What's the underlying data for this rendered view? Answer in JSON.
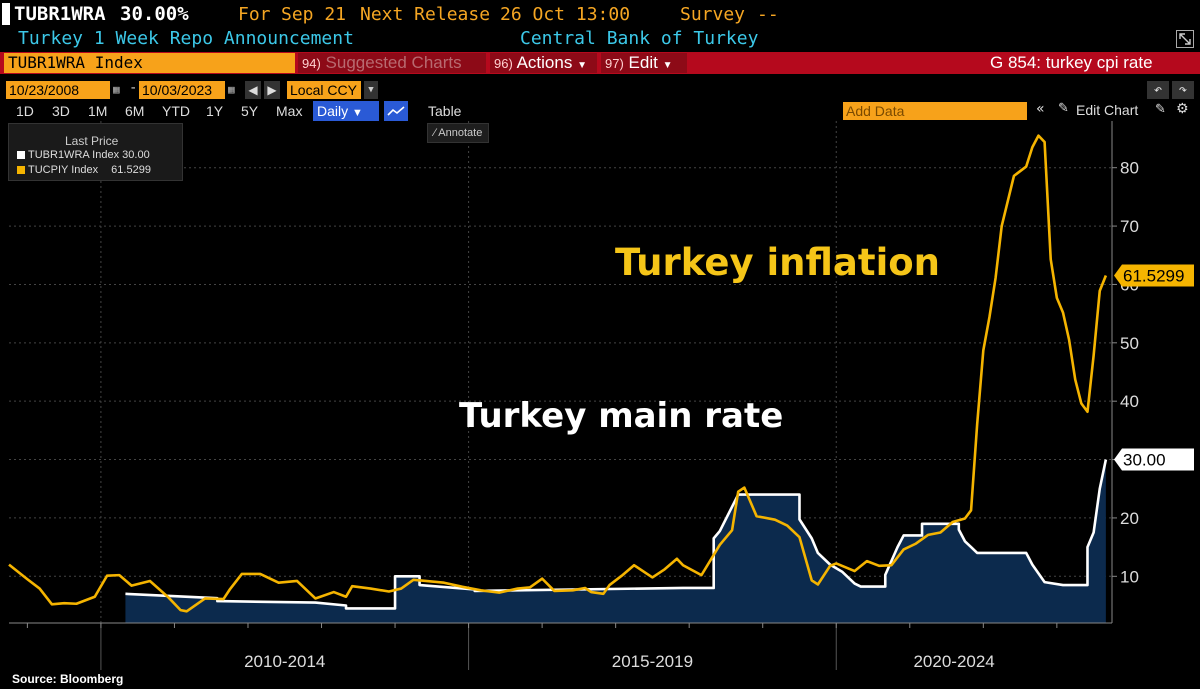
{
  "header": {
    "ticker": "TUBR1WRA",
    "value": "30.00%",
    "for_label": "For",
    "for_date": "Sep 21",
    "next_release_label": "Next Release",
    "next_release": "26 Oct 13:00",
    "survey_label": "Survey",
    "survey_value": "--",
    "description": "Turkey 1 Week Repo Announcement",
    "source_org": "Central Bank of Turkey"
  },
  "toolbar": {
    "security": "TUBR1WRA Index",
    "suggested_num": "94)",
    "suggested_label": "Suggested Charts",
    "actions_num": "96)",
    "actions_label": "Actions",
    "edit_num": "97)",
    "edit_label": "Edit",
    "search_label": "G 854: turkey cpi rate",
    "start_date": "10/23/2008",
    "end_date": "10/03/2023",
    "currency": "Local CCY",
    "ranges": [
      "1D",
      "3D",
      "1M",
      "6M",
      "YTD",
      "1Y",
      "5Y",
      "Max"
    ],
    "frequency": "Daily",
    "table_label": "Table",
    "add_data_placeholder": "Add Data",
    "edit_chart_label": "Edit Chart",
    "annotate_label": "Annotate"
  },
  "legend": {
    "title": "Last Price",
    "items": [
      {
        "label": "TUBR1WRA Index",
        "value": "30.00",
        "color": "#ffffff"
      },
      {
        "label": "TUCPIY Index",
        "value": "61.5299",
        "color": "#f5b400"
      }
    ]
  },
  "annotations": {
    "inflation": "Turkey inflation",
    "rate": "Turkey main rate"
  },
  "source": "Source: Bloomberg",
  "chart_data": {
    "type": "line",
    "x_range": [
      "2008-10",
      "2023-10"
    ],
    "ylim": [
      2,
      88
    ],
    "yticks": [
      10,
      20,
      30,
      40,
      50,
      60,
      70,
      80
    ],
    "x_period_labels": [
      "2010-2014",
      "2015-2019",
      "2020-2024"
    ],
    "last_values": {
      "rate": "30.00",
      "inflation": "61.5299"
    },
    "series": [
      {
        "name": "TUBR1WRA Index",
        "color": "#ffffff",
        "fill": "#0c2a4d",
        "points": [
          [
            "2010-05",
            7
          ],
          [
            "2011-08",
            6.25
          ],
          [
            "2011-08",
            5.75
          ],
          [
            "2012-12",
            5.5
          ],
          [
            "2013-05",
            5
          ],
          [
            "2013-05",
            4.5
          ],
          [
            "2014-01",
            4.5
          ],
          [
            "2014-01",
            10
          ],
          [
            "2014-05",
            10
          ],
          [
            "2014-05",
            8.5
          ],
          [
            "2015-02",
            7.75
          ],
          [
            "2015-02",
            7.5
          ],
          [
            "2017-12",
            8
          ],
          [
            "2018-05",
            8
          ],
          [
            "2018-05",
            16.5
          ],
          [
            "2018-06",
            17.75
          ],
          [
            "2018-09",
            24
          ],
          [
            "2019-07",
            24
          ],
          [
            "2019-07",
            19.75
          ],
          [
            "2019-09",
            16.5
          ],
          [
            "2019-10",
            14
          ],
          [
            "2019-12",
            12
          ],
          [
            "2020-02",
            10.75
          ],
          [
            "2020-04",
            8.75
          ],
          [
            "2020-05",
            8.25
          ],
          [
            "2020-09",
            8.25
          ],
          [
            "2020-09",
            10.25
          ],
          [
            "2020-11",
            15
          ],
          [
            "2020-12",
            17
          ],
          [
            "2021-03",
            17
          ],
          [
            "2021-03",
            19
          ],
          [
            "2021-09",
            19
          ],
          [
            "2021-09",
            18
          ],
          [
            "2021-10",
            16
          ],
          [
            "2021-11",
            15
          ],
          [
            "2021-12",
            14
          ],
          [
            "2022-08",
            14
          ],
          [
            "2022-09",
            12
          ],
          [
            "2022-10",
            10.5
          ],
          [
            "2022-11",
            9
          ],
          [
            "2023-02",
            8.5
          ],
          [
            "2023-06",
            8.5
          ],
          [
            "2023-06",
            15
          ],
          [
            "2023-07",
            17.5
          ],
          [
            "2023-08",
            25
          ],
          [
            "2023-09",
            30
          ]
        ]
      },
      {
        "name": "TUCPIY Index",
        "color": "#f5b400",
        "points": [
          [
            "2008-10",
            12
          ],
          [
            "2009-01",
            9.5
          ],
          [
            "2009-03",
            7.9
          ],
          [
            "2009-05",
            5.2
          ],
          [
            "2009-07",
            5.4
          ],
          [
            "2009-09",
            5.3
          ],
          [
            "2009-12",
            6.5
          ],
          [
            "2010-02",
            10.1
          ],
          [
            "2010-04",
            10.2
          ],
          [
            "2010-06",
            8.4
          ],
          [
            "2010-09",
            9.2
          ],
          [
            "2010-12",
            6.4
          ],
          [
            "2011-02",
            4.2
          ],
          [
            "2011-03",
            4
          ],
          [
            "2011-06",
            6.2
          ],
          [
            "2011-09",
            6.1
          ],
          [
            "2011-10",
            7.7
          ],
          [
            "2011-12",
            10.4
          ],
          [
            "2012-03",
            10.4
          ],
          [
            "2012-06",
            8.9
          ],
          [
            "2012-09",
            9.2
          ],
          [
            "2012-12",
            6.2
          ],
          [
            "2013-03",
            7.3
          ],
          [
            "2013-05",
            6.5
          ],
          [
            "2013-06",
            8.3
          ],
          [
            "2013-09",
            7.9
          ],
          [
            "2013-12",
            7.4
          ],
          [
            "2014-02",
            7.9
          ],
          [
            "2014-04",
            9.4
          ],
          [
            "2014-06",
            9.2
          ],
          [
            "2014-09",
            8.9
          ],
          [
            "2014-12",
            8.2
          ],
          [
            "2015-03",
            7.6
          ],
          [
            "2015-06",
            7.2
          ],
          [
            "2015-09",
            7.9
          ],
          [
            "2015-11",
            8.1
          ],
          [
            "2016-01",
            9.6
          ],
          [
            "2016-03",
            7.5
          ],
          [
            "2016-06",
            7.6
          ],
          [
            "2016-08",
            8
          ],
          [
            "2016-09",
            7.3
          ],
          [
            "2016-11",
            7
          ],
          [
            "2016-12",
            8.5
          ],
          [
            "2017-02",
            10.1
          ],
          [
            "2017-04",
            11.9
          ],
          [
            "2017-07",
            9.8
          ],
          [
            "2017-09",
            11.2
          ],
          [
            "2017-11",
            13
          ],
          [
            "2017-12",
            11.9
          ],
          [
            "2018-03",
            10.2
          ],
          [
            "2018-06",
            15.4
          ],
          [
            "2018-08",
            17.9
          ],
          [
            "2018-09",
            24.5
          ],
          [
            "2018-10",
            25.2
          ],
          [
            "2018-12",
            20.3
          ],
          [
            "2019-03",
            19.7
          ],
          [
            "2019-05",
            18.7
          ],
          [
            "2019-07",
            16.7
          ],
          [
            "2019-09",
            9.3
          ],
          [
            "2019-10",
            8.6
          ],
          [
            "2019-12",
            11.8
          ],
          [
            "2020-01",
            12.2
          ],
          [
            "2020-04",
            10.9
          ],
          [
            "2020-06",
            12.6
          ],
          [
            "2020-08",
            11.8
          ],
          [
            "2020-10",
            11.9
          ],
          [
            "2020-12",
            14.6
          ],
          [
            "2021-02",
            15.6
          ],
          [
            "2021-04",
            17.1
          ],
          [
            "2021-06",
            17.5
          ],
          [
            "2021-08",
            19.3
          ],
          [
            "2021-09",
            19.6
          ],
          [
            "2021-10",
            19.9
          ],
          [
            "2021-11",
            21.3
          ],
          [
            "2021-12",
            36.1
          ],
          [
            "2022-01",
            48.7
          ],
          [
            "2022-02",
            54.4
          ],
          [
            "2022-03",
            61.1
          ],
          [
            "2022-04",
            70
          ],
          [
            "2022-06",
            78.6
          ],
          [
            "2022-08",
            80.2
          ],
          [
            "2022-09",
            83.5
          ],
          [
            "2022-10",
            85.5
          ],
          [
            "2022-11",
            84.4
          ],
          [
            "2022-12",
            64.3
          ],
          [
            "2023-01",
            57.7
          ],
          [
            "2023-02",
            55.2
          ],
          [
            "2023-03",
            50.5
          ],
          [
            "2023-04",
            43.7
          ],
          [
            "2023-05",
            39.6
          ],
          [
            "2023-06",
            38.2
          ],
          [
            "2023-07",
            47.8
          ],
          [
            "2023-08",
            58.9
          ],
          [
            "2023-09",
            61.5299
          ]
        ]
      }
    ]
  }
}
